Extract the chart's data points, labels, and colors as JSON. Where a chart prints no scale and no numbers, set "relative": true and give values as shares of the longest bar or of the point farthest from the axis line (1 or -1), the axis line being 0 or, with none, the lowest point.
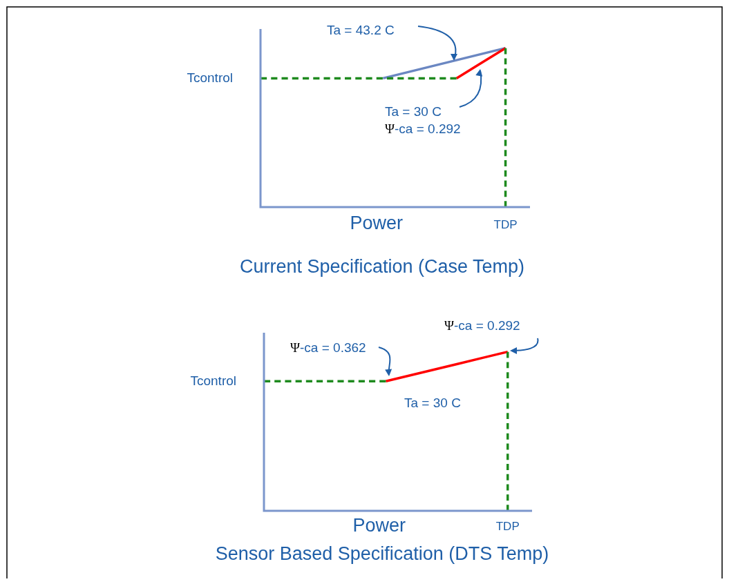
{
  "chart_data": [
    {
      "type": "line",
      "relative": true,
      "title": "Current Specification (Case Temp)",
      "xlabel": "Power",
      "categories": [
        null,
        null,
        null,
        null,
        null,
        null,
        null,
        null,
        null,
        null,
        null,
        null
      ],
      "series": [
        {
          "color": "#6b87c2",
          "values": [
            null,
            null,
            null,
            null,
            null,
            0.81,
            0.848,
            0.886,
            0.924,
            0.962,
            1,
            null
          ]
        },
        {
          "color": "#ff0000",
          "values": [
            null,
            null,
            null,
            null,
            null,
            null,
            null,
            null,
            0.81,
            0.905,
            1,
            null
          ]
        },
        {
          "name": "Tcontrol",
          "color": "#1e8a1e",
          "line_style": "dashed",
          "values": [
            0.81,
            0.81,
            0.81,
            0.81,
            0.81,
            0.81,
            0.81,
            0.81,
            0.81,
            null,
            null,
            null
          ]
        }
      ],
      "ref_lines": [
        {
          "axis": "x",
          "value": "TDP",
          "color": "#1e8a1e",
          "line_style": "dashed"
        }
      ],
      "annotations": [
        "Ta = 43.2 C",
        "Ta = 30 C",
        "Ψ-ca = 0.292"
      ]
    },
    {
      "type": "line",
      "relative": true,
      "title": "Sensor Based Specification (DTS Temp)",
      "xlabel": "Power",
      "categories": [
        null,
        null,
        null,
        null,
        null,
        null,
        null,
        null,
        null,
        null,
        null,
        null
      ],
      "series": [
        {
          "color": "#ff0000",
          "values": [
            null,
            null,
            null,
            null,
            null,
            0.815,
            0.852,
            0.889,
            0.926,
            0.963,
            1,
            null
          ]
        },
        {
          "name": "Tcontrol",
          "color": "#1e8a1e",
          "line_style": "dashed",
          "values": [
            0.815,
            0.815,
            0.815,
            0.815,
            0.815,
            0.815,
            null,
            null,
            null,
            null,
            null,
            null
          ]
        }
      ],
      "ref_lines": [
        {
          "axis": "x",
          "value": "TDP",
          "color": "#1e8a1e",
          "line_style": "dashed"
        }
      ],
      "annotations": [
        "Ψ-ca = 0.362",
        "Ψ-ca = 0.292",
        "Ta = 30 C"
      ]
    }
  ]
}
